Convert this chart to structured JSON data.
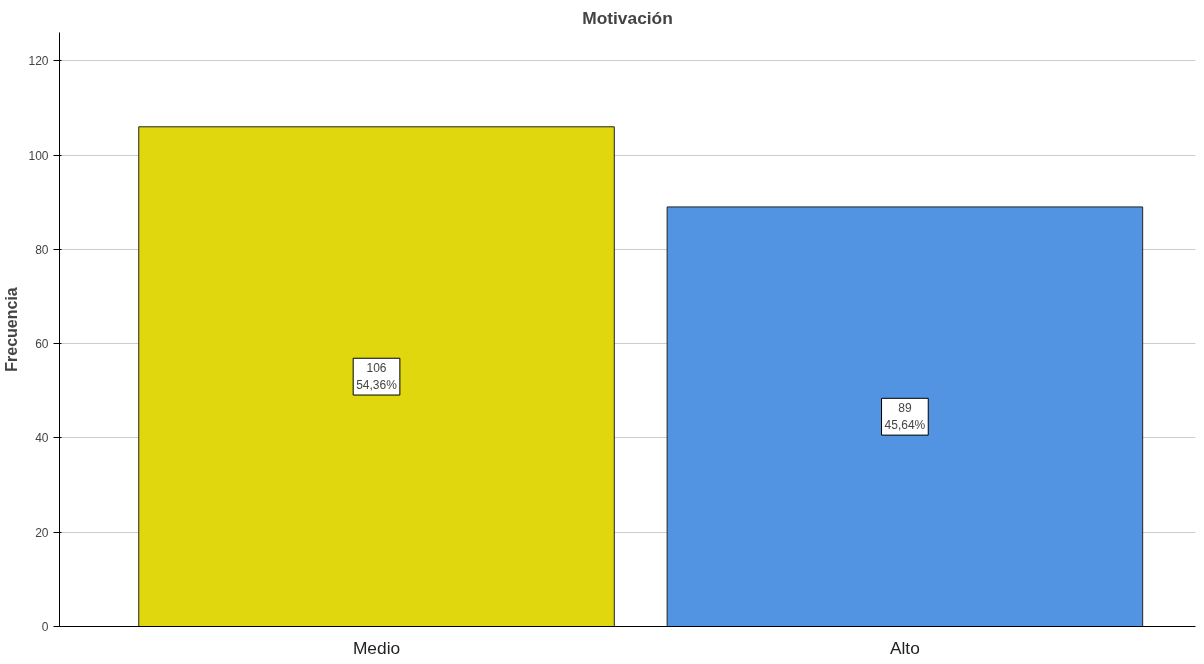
{
  "chart_data": {
    "type": "bar",
    "title": "Motivación",
    "ylabel": "Frecuencia",
    "categories": [
      "Medio",
      "Alto"
    ],
    "values": [
      106,
      89
    ],
    "colors": [
      "#e1d70f",
      "#5294e2"
    ],
    "value_labels": [
      "106\n54,36%",
      "89\n45,64%"
    ],
    "ylim": [
      0,
      126
    ],
    "yticks": [
      0,
      20,
      40,
      60,
      80,
      100,
      120
    ],
    "grid": "y"
  }
}
